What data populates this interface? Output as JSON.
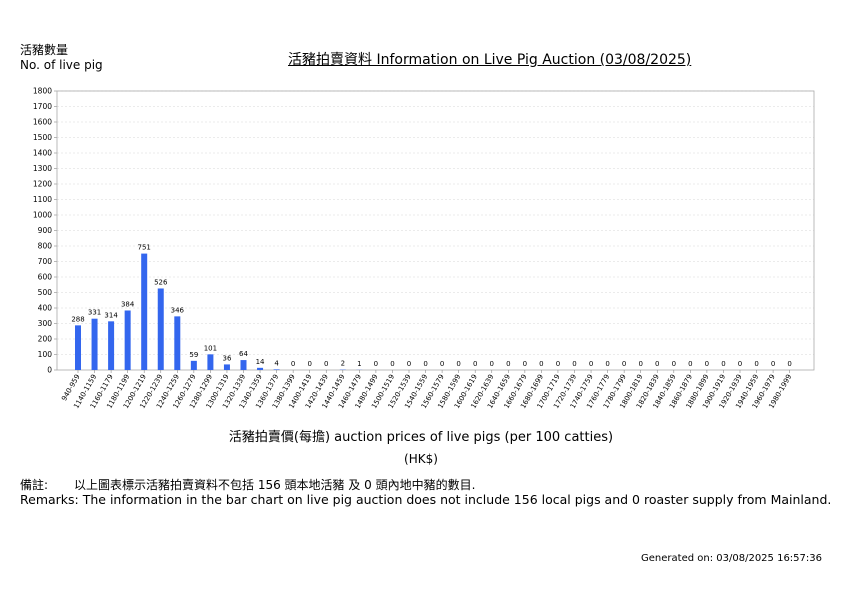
{
  "header": {
    "ylabel_cn": "活豬數量",
    "ylabel_en": "No. of live pig",
    "title": "活豬拍賣資料 Information on Live Pig Auction (03/08/2025)"
  },
  "footer": {
    "xlabel": "活豬拍賣價(每擔) auction prices of live pigs (per 100 catties)",
    "unit": "(HK$)",
    "remarks_cn_head": "備註:",
    "remarks_cn_text": "以上圖表標示活豬拍賣資料不包括 156 頭本地活豬 及 0 頭內地中豬的數目.",
    "remarks_en": "Remarks: The information in the bar chart on live pig auction does not include 156 local pigs and 0 roaster supply from Mainland.",
    "generated": "Generated on: 03/08/2025 16:57:36"
  },
  "chart_data": {
    "type": "bar",
    "title": "活豬拍賣資料 Information on Live Pig Auction (03/08/2025)",
    "xlabel": "活豬拍賣價(每擔) auction prices of live pigs (per 100 catties)",
    "ylabel": "活豬數量 No. of live pig",
    "ylim": [
      0,
      1800
    ],
    "yticks": [
      0,
      100,
      200,
      300,
      400,
      500,
      600,
      700,
      800,
      900,
      1000,
      1100,
      1200,
      1300,
      1400,
      1500,
      1600,
      1700,
      1800
    ],
    "grid": true,
    "bar_color": "#3366ee",
    "categories": [
      "940-959",
      "1140-1159",
      "1160-1179",
      "1180-1199",
      "1200-1219",
      "1220-1239",
      "1240-1259",
      "1260-1279",
      "1280-1299",
      "1300-1319",
      "1320-1339",
      "1340-1359",
      "1360-1379",
      "1380-1399",
      "1400-1419",
      "1420-1439",
      "1440-1459",
      "1460-1479",
      "1480-1499",
      "1500-1519",
      "1520-1539",
      "1540-1559",
      "1560-1579",
      "1580-1599",
      "1600-1619",
      "1620-1639",
      "1640-1659",
      "1660-1679",
      "1680-1699",
      "1700-1719",
      "1720-1739",
      "1740-1759",
      "1760-1779",
      "1780-1799",
      "1800-1819",
      "1820-1839",
      "1840-1859",
      "1860-1879",
      "1880-1899",
      "1900-1919",
      "1920-1939",
      "1940-1959",
      "1960-1979",
      "1980-1999"
    ],
    "values": [
      288,
      331,
      314,
      384,
      751,
      526,
      346,
      59,
      101,
      36,
      64,
      14,
      4,
      0,
      0,
      0,
      2,
      1,
      0,
      0,
      0,
      0,
      0,
      0,
      0,
      0,
      0,
      0,
      0,
      0,
      0,
      0,
      0,
      0,
      0,
      0,
      0,
      0,
      0,
      0,
      0,
      0,
      0,
      0
    ]
  }
}
